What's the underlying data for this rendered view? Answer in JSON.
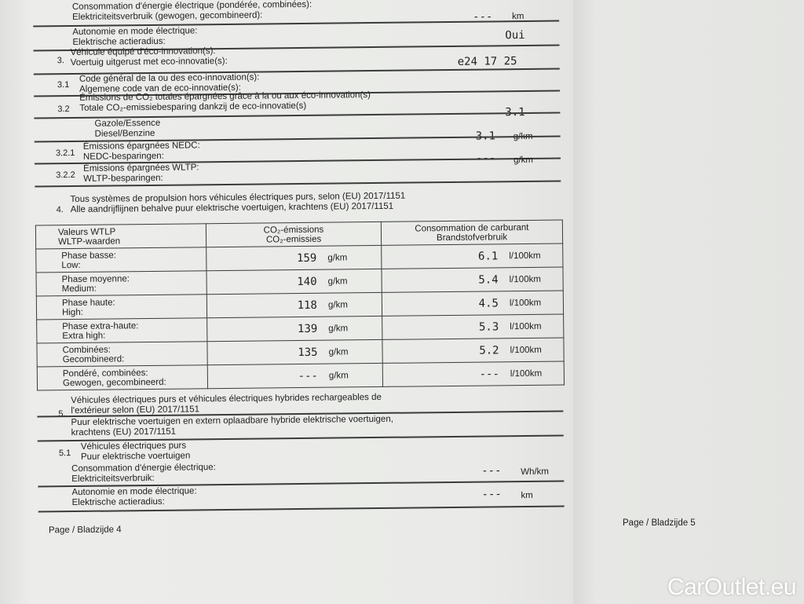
{
  "top": {
    "elec_cons_fr": "Consommation d'énergie électrique (pondérée, combinées):",
    "elec_cons_nl": "Elektriciteitsverbruik (gewogen, gecombineerd):",
    "elec_cons_value": "---",
    "elec_cons_unit": "km",
    "range_fr": "Autonomie en mode électrique:",
    "range_nl": "Elektrische actieradius:",
    "range_value": "Oui"
  },
  "sec3": {
    "num": "3.",
    "fr": "Véhicule équipé d'éco-innovation(s):",
    "nl": "Voertuig uitgerust met eco-innovatie(s):",
    "value": "e24 17 25"
  },
  "sec31": {
    "num": "3.1",
    "fr": "Code général de la ou des eco-innovation(s):",
    "nl": "Algemene code van de eco-innovatie(s):"
  },
  "sec32": {
    "num": "3.2",
    "fr": "Émissions de CO₂ totales épargnées grâce à la ou aux éco-innovation(s)",
    "nl": "Totale CO₂-emissiebesparing dankzij de eco-innovatie(s)",
    "value": "3.1"
  },
  "fuel": {
    "fr": "Gazole/Essence",
    "nl": "Diesel/Benzine",
    "value": "3.1",
    "unit": "g/km"
  },
  "sec321": {
    "num": "3.2.1",
    "fr": "Émissions épargnées NEDC:",
    "nl": "NEDC-besparingen:"
  },
  "sec322": {
    "num": "3.2.2",
    "fr": "Émissions épargnées WLTP:",
    "nl": "WLTP-besparingen:",
    "value": "---",
    "unit": "g/km"
  },
  "sec4": {
    "num": "4.",
    "fr": "Tous systèmes de propulsion hors véhicules électriques purs, selon (EU) 2017/1151",
    "nl": "Alle aandrijflijnen behalve puur elektrische voertuigen, krachtens (EU) 2017/1151"
  },
  "table": {
    "headers": {
      "col1_fr": "Valeurs WTLP",
      "col1_nl": "WLTP-waarden",
      "col2_fr": "CO₂-émissions",
      "col2_nl": "CO₂-emissies",
      "col3_fr": "Consommation de carburant",
      "col3_nl": "Brandstofverbruik"
    },
    "rows": [
      {
        "fr": "Phase basse:",
        "nl": "Low:",
        "co2": "159",
        "co2_unit": "g/km",
        "fuel": "6.1",
        "fuel_unit": "l/100km"
      },
      {
        "fr": "Phase moyenne:",
        "nl": "Medium:",
        "co2": "140",
        "co2_unit": "g/km",
        "fuel": "5.4",
        "fuel_unit": "l/100km"
      },
      {
        "fr": "Phase haute:",
        "nl": "High:",
        "co2": "118",
        "co2_unit": "g/km",
        "fuel": "4.5",
        "fuel_unit": "l/100km"
      },
      {
        "fr": "Phase extra-haute:",
        "nl": "Extra high:",
        "co2": "139",
        "co2_unit": "g/km",
        "fuel": "5.3",
        "fuel_unit": "l/100km"
      },
      {
        "fr": "Combinées:",
        "nl": "Gecombineerd:",
        "co2": "135",
        "co2_unit": "g/km",
        "fuel": "5.2",
        "fuel_unit": "l/100km"
      },
      {
        "fr": "Pondéré, combinées:",
        "nl": "Gewogen, gecombineerd:",
        "co2": "---",
        "co2_unit": "g/km",
        "fuel": "---",
        "fuel_unit": "l/100km"
      }
    ]
  },
  "sec5": {
    "num": "5.",
    "fr1": "Véhicules électriques purs et véhicules électriques hybrides rechargeables de",
    "fr2": "l'extérieur selon (EU) 2017/1151",
    "nl1": "Puur elektrische voertuigen en extern oplaadbare hybride elektrische voertuigen,",
    "nl2": "krachtens (EU) 2017/1151"
  },
  "sec51": {
    "num": "5.1",
    "fr": "Véhicules électriques purs",
    "nl": "Puur elektrische voertuigen",
    "cons_fr": "Consommation d'énergie électrique:",
    "cons_nl": "Elektriciteitsverbruik:",
    "cons_value": "---",
    "cons_unit": "Wh/km",
    "range_fr": "Autonomie en mode électrique:",
    "range_nl": "Elektrische actieradius:",
    "range_value": "---",
    "range_unit": "km"
  },
  "footer": {
    "page4": "Page / Bladzijde 4",
    "page5": "Page / Bladzijde 5"
  },
  "watermark": "CarOutlet.eu"
}
